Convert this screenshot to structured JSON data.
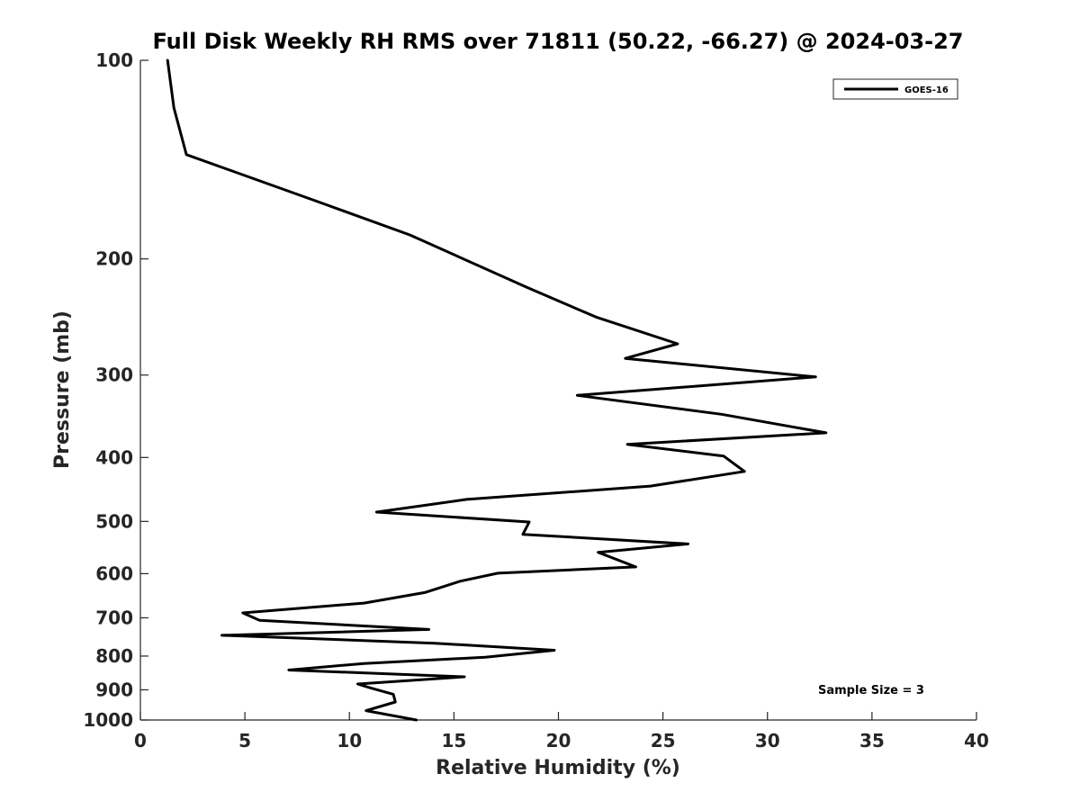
{
  "chart_data": {
    "type": "line",
    "title": "Full Disk Weekly RH RMS over 71811 (50.22, -66.27) @ 2024-03-27",
    "xlabel": "Relative Humidity (%)",
    "ylabel": "Pressure (mb)",
    "xlim": [
      0,
      40
    ],
    "ylim": [
      1000,
      100
    ],
    "yscale": "log",
    "y_reversed": true,
    "grid": false,
    "legend_position": "top-right",
    "x_ticks": [
      0,
      5,
      10,
      15,
      20,
      25,
      30,
      35,
      40
    ],
    "x_tick_labels": [
      "0",
      "5",
      "10",
      "15",
      "20",
      "25",
      "30",
      "35",
      "40"
    ],
    "y_ticks": [
      100,
      200,
      300,
      400,
      500,
      600,
      700,
      800,
      900,
      1000
    ],
    "y_tick_labels": [
      "100",
      "200",
      "300",
      "400",
      "500",
      "600",
      "700",
      "800",
      "900",
      "1000"
    ],
    "series": [
      {
        "name": "GOES-16",
        "color": "#000000",
        "x": [
          1.3,
          1.6,
          2.2,
          8.3,
          12.9,
          18.5,
          21.8,
          25.7,
          23.2,
          32.3,
          20.9,
          27.8,
          32.8,
          23.3,
          27.9,
          28.9,
          24.4,
          15.6,
          11.3,
          18.6,
          18.3,
          26.2,
          21.9,
          23.7,
          17.1,
          15.3,
          13.6,
          10.7,
          4.9,
          5.7,
          13.8,
          3.9,
          14.1,
          19.8,
          16.5,
          10.7,
          7.1,
          15.5,
          10.4,
          11.0,
          12.1,
          12.2,
          10.8,
          13.2
        ],
        "y": [
          100,
          118,
          139,
          163,
          184,
          221,
          245,
          269,
          283,
          302,
          322,
          344,
          367,
          382,
          398,
          420,
          442,
          463,
          484,
          501,
          523,
          541,
          557,
          586,
          599,
          616,
          641,
          665,
          688,
          706,
          729,
          744,
          765,
          784,
          803,
          821,
          840,
          860,
          882,
          894,
          914,
          939,
          968,
          1000
        ]
      }
    ],
    "legend": [
      "GOES-16"
    ],
    "annotations": [
      "Sample Size = 3"
    ]
  }
}
